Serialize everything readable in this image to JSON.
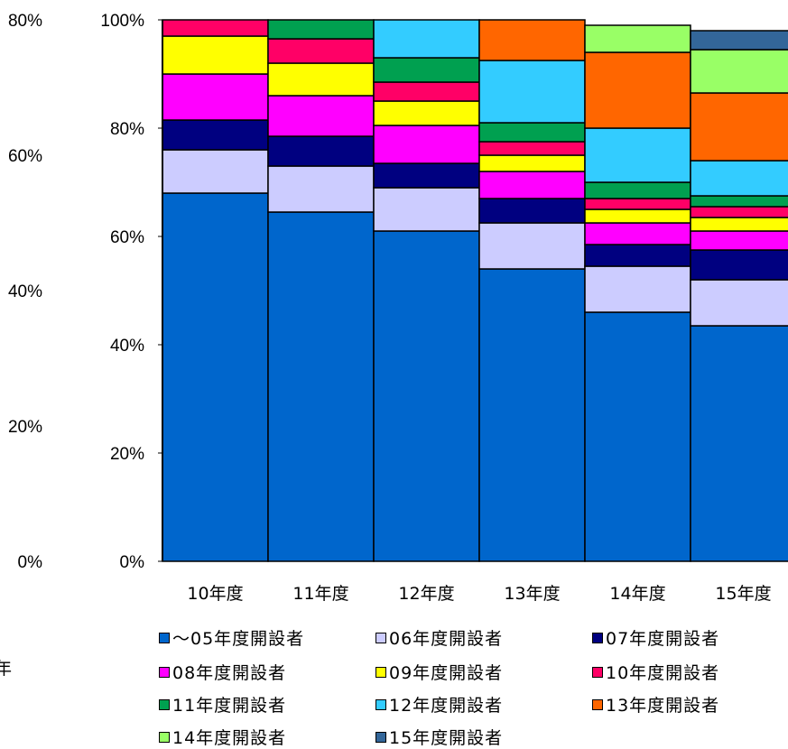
{
  "chart_data": {
    "type": "bar",
    "stacked": true,
    "normalized": true,
    "categories": [
      "10年度",
      "11年度",
      "12年度",
      "13年度",
      "14年度",
      "15年度"
    ],
    "yticks": [
      "0%",
      "20%",
      "40%",
      "60%",
      "80%",
      "100%"
    ],
    "left_axis_labels": [
      "0%",
      "20%",
      "40%",
      "60%",
      "80%"
    ],
    "ylim": [
      0,
      100
    ],
    "legend_position": "bottom",
    "series": [
      {
        "name": "～05年度開設者",
        "color": "#0066CC",
        "values": [
          68,
          64.5,
          61,
          54,
          46,
          43.5
        ]
      },
      {
        "name": "06年度開設者",
        "color": "#CCCCFF",
        "values": [
          8,
          8.5,
          8,
          8.5,
          8.5,
          8.5
        ]
      },
      {
        "name": "07年度開設者",
        "color": "#000080",
        "values": [
          5.5,
          5.5,
          4.5,
          4.5,
          4,
          5.5
        ]
      },
      {
        "name": "08年度開設者",
        "color": "#FF00FF",
        "values": [
          8.5,
          7.5,
          7,
          5,
          4,
          3.5
        ]
      },
      {
        "name": "09年度開設者",
        "color": "#FFFF00",
        "values": [
          7,
          6,
          4.5,
          3,
          2.5,
          2.5
        ]
      },
      {
        "name": "10年度開設者",
        "color": "#FF0066",
        "values": [
          3,
          4.5,
          3.5,
          2.5,
          2,
          2
        ]
      },
      {
        "name": "11年度開設者",
        "color": "#00A050",
        "values": [
          0,
          3.5,
          4.5,
          3.5,
          3,
          2
        ]
      },
      {
        "name": "12年度開設者",
        "color": "#33CCFF",
        "values": [
          0,
          0,
          7,
          11.5,
          10,
          6.5
        ]
      },
      {
        "name": "13年度開設者",
        "color": "#FF6600",
        "values": [
          0,
          0,
          0,
          7.5,
          14,
          12.5
        ]
      },
      {
        "name": "14年度開設者",
        "color": "#99FF66",
        "values": [
          0,
          0,
          0,
          0,
          5,
          8
        ]
      },
      {
        "name": "15年度開設者",
        "color": "#336699",
        "values": [
          0,
          0,
          0,
          0,
          0,
          3.5
        ]
      }
    ]
  },
  "page_fragment": "年"
}
